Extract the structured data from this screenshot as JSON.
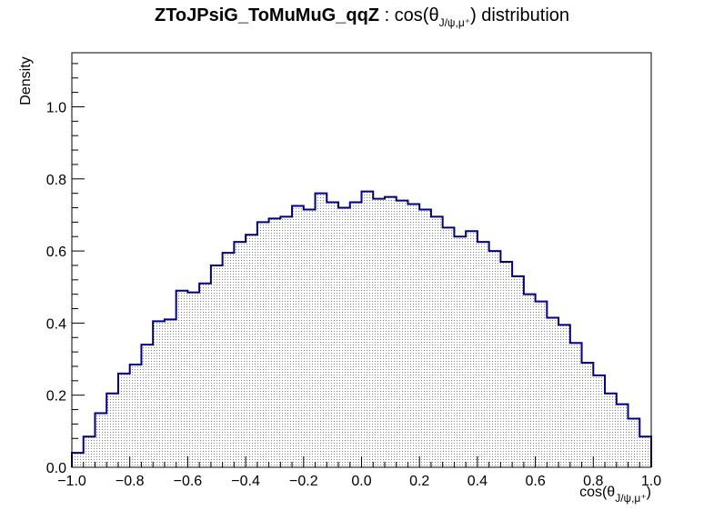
{
  "chart_data": {
    "type": "bar",
    "title_bold": "ZToJPsiG_ToMuMuG_qqZ",
    "title_rest_prefix": " : cos(θ",
    "title_subscript": "J/ψ,μ⁺",
    "title_rest_suffix": ") distribution",
    "xlabel_prefix": "cos(θ",
    "xlabel_subscript": "J/ψ,μ⁺",
    "xlabel_suffix": ")",
    "ylabel": "Density",
    "xlim": [
      -1.0,
      1.0
    ],
    "ylim": [
      0,
      1.15
    ],
    "x_ticks": [
      "−1.0",
      "−0.8",
      "−0.6",
      "−0.4",
      "−0.2",
      "0.0",
      "0.2",
      "0.4",
      "0.6",
      "0.8",
      "1.0"
    ],
    "y_ticks": [
      "0.0",
      "0.2",
      "0.4",
      "0.6",
      "0.8",
      "1.0"
    ],
    "bin_edges_start": -1.0,
    "bin_width": 0.04,
    "values": [
      0.04,
      0.085,
      0.15,
      0.205,
      0.26,
      0.285,
      0.34,
      0.405,
      0.41,
      0.49,
      0.485,
      0.51,
      0.56,
      0.595,
      0.625,
      0.645,
      0.68,
      0.69,
      0.695,
      0.725,
      0.715,
      0.76,
      0.735,
      0.72,
      0.735,
      0.765,
      0.745,
      0.75,
      0.74,
      0.73,
      0.715,
      0.695,
      0.665,
      0.64,
      0.655,
      0.625,
      0.6,
      0.57,
      0.53,
      0.48,
      0.46,
      0.415,
      0.395,
      0.345,
      0.29,
      0.255,
      0.205,
      0.175,
      0.135,
      0.085,
      0.03
    ],
    "colors": {
      "line": "#000080",
      "fill_dot": "#808080",
      "axis": "#000000"
    },
    "fill_pattern": "dotted"
  }
}
